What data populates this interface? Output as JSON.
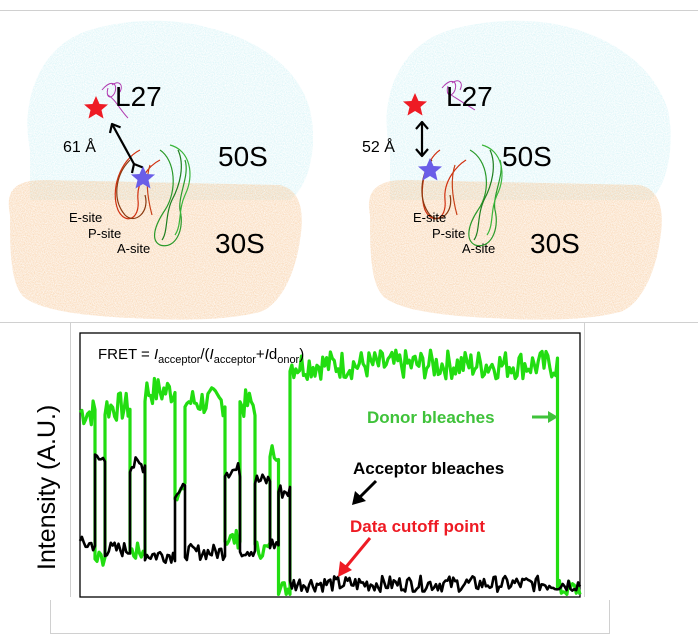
{
  "top": {
    "left": {
      "l27": "L27",
      "distance": "61 Å",
      "sub50": "50S",
      "sub30": "30S",
      "sites": [
        "E-site",
        "P-site",
        "A-site"
      ]
    },
    "right": {
      "l27": "L27",
      "distance": "52 Å",
      "sub50": "50S",
      "sub30": "30S",
      "sites": [
        "E-site",
        "P-site",
        "A-site"
      ]
    }
  },
  "colors": {
    "ribosome50S": "#c9f0f5",
    "ribosome30S": "#f7c99a",
    "acceptorStar": "#ee1b24",
    "donorStar": "#6a5ee8",
    "donorTrace": "#22dd11",
    "acceptorTrace": "#000000",
    "cutoffLabel": "#ee1b24",
    "donorLabel": "#3fc23a"
  },
  "chart": {
    "formula": {
      "prefix": "FRET = ",
      "i1": "I",
      "sub1": "acceptor",
      "mid": "/(",
      "i2": "I",
      "sub2": "acceptor",
      "plus": "+",
      "i3": "I",
      "d": "d",
      "sub3": "onor",
      "close": ")"
    },
    "ylabel": "Intensity (A.U.)",
    "annotations": {
      "donor": "Donor bleaches",
      "acceptor": "Acceptor bleaches",
      "cutoff": "Data cutoff point"
    }
  },
  "chart_data": {
    "type": "line",
    "ylabel": "Intensity (A.U.)",
    "xlabel": "",
    "x_range": [
      0,
      1
    ],
    "y_range": [
      0,
      1
    ],
    "cutoff_x": 0.397,
    "acceptor_bleach_x": 0.42,
    "donor_bleach_x": 0.955,
    "series": [
      {
        "name": "Donor",
        "segments": [
          {
            "x0": 0.0,
            "x1": 0.03,
            "level": 0.7
          },
          {
            "x0": 0.03,
            "x1": 0.05,
            "level": 0.15
          },
          {
            "x0": 0.05,
            "x1": 0.1,
            "level": 0.72
          },
          {
            "x0": 0.1,
            "x1": 0.13,
            "level": 0.17
          },
          {
            "x0": 0.13,
            "x1": 0.19,
            "level": 0.78
          },
          {
            "x0": 0.19,
            "x1": 0.21,
            "level": 0.4
          },
          {
            "x0": 0.21,
            "x1": 0.29,
            "level": 0.74
          },
          {
            "x0": 0.29,
            "x1": 0.32,
            "level": 0.22
          },
          {
            "x0": 0.32,
            "x1": 0.35,
            "level": 0.73
          },
          {
            "x0": 0.35,
            "x1": 0.38,
            "level": 0.18
          },
          {
            "x0": 0.38,
            "x1": 0.397,
            "level": 0.55
          },
          {
            "x0": 0.397,
            "x1": 0.42,
            "level": 0.03
          },
          {
            "x0": 0.42,
            "x1": 0.955,
            "level": 0.88
          },
          {
            "x0": 0.955,
            "x1": 1.0,
            "level": 0.03
          }
        ]
      },
      {
        "name": "Acceptor",
        "segments": [
          {
            "x0": 0.0,
            "x1": 0.03,
            "level": 0.2
          },
          {
            "x0": 0.03,
            "x1": 0.05,
            "level": 0.52
          },
          {
            "x0": 0.05,
            "x1": 0.1,
            "level": 0.18
          },
          {
            "x0": 0.1,
            "x1": 0.13,
            "level": 0.5
          },
          {
            "x0": 0.13,
            "x1": 0.19,
            "level": 0.16
          },
          {
            "x0": 0.19,
            "x1": 0.21,
            "level": 0.4
          },
          {
            "x0": 0.21,
            "x1": 0.29,
            "level": 0.17
          },
          {
            "x0": 0.29,
            "x1": 0.32,
            "level": 0.48
          },
          {
            "x0": 0.32,
            "x1": 0.35,
            "level": 0.18
          },
          {
            "x0": 0.35,
            "x1": 0.38,
            "level": 0.44
          },
          {
            "x0": 0.38,
            "x1": 0.397,
            "level": 0.2
          },
          {
            "x0": 0.397,
            "x1": 0.42,
            "level": 0.4
          },
          {
            "x0": 0.42,
            "x1": 1.0,
            "level": 0.05
          }
        ]
      }
    ]
  }
}
